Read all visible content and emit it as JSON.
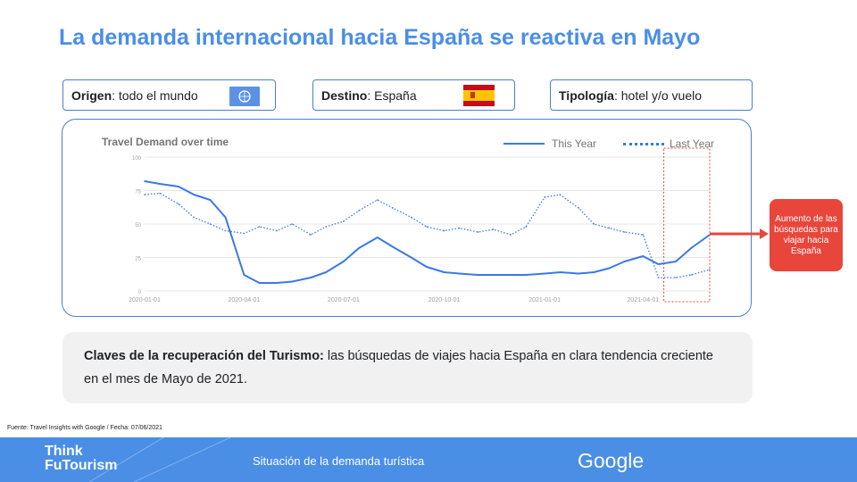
{
  "title": "La demanda internacional hacia España se reactiva en Mayo",
  "filters": {
    "origen_label": "Origen",
    "origen_value": ": todo el mundo",
    "destino_label": "Destino",
    "destino_value": ": España",
    "tipologia_label": "Tipología",
    "tipologia_value": ": hotel y/o vuelo"
  },
  "chart_data": {
    "type": "line",
    "title": "Travel Demand over time",
    "xlabel": "",
    "ylabel": "",
    "x": [
      "2020-01-01",
      "2020-01-15",
      "2020-02-01",
      "2020-02-15",
      "2020-03-01",
      "2020-03-15",
      "2020-04-01",
      "2020-04-15",
      "2020-05-01",
      "2020-05-15",
      "2020-06-01",
      "2020-06-15",
      "2020-07-01",
      "2020-07-15",
      "2020-08-01",
      "2020-08-15",
      "2020-09-01",
      "2020-09-15",
      "2020-10-01",
      "2020-10-15",
      "2020-11-01",
      "2020-11-15",
      "2020-12-01",
      "2020-12-15",
      "2021-01-01",
      "2021-01-15",
      "2021-02-01",
      "2021-02-15",
      "2021-03-01",
      "2021-03-15",
      "2021-04-01",
      "2021-04-15",
      "2021-05-01",
      "2021-05-15",
      "2021-06-01"
    ],
    "x_ticks": [
      "2020-01-01",
      "2020-04-01",
      "2020-07-01",
      "2020-10-01",
      "2021-01-01",
      "2021-04-01"
    ],
    "y_ticks": [
      0,
      25,
      50,
      75,
      100
    ],
    "ylim": [
      0,
      100
    ],
    "grid": true,
    "legend_position": "top-right",
    "series": [
      {
        "name": "This Year",
        "style": "solid",
        "values": [
          82,
          80,
          78,
          72,
          68,
          55,
          12,
          6,
          6,
          7,
          10,
          14,
          22,
          32,
          40,
          33,
          25,
          18,
          14,
          13,
          12,
          12,
          12,
          12,
          13,
          14,
          13,
          14,
          17,
          22,
          26,
          20,
          22,
          32,
          42
        ]
      },
      {
        "name": "Last Year",
        "style": "dotted",
        "values": [
          72,
          73,
          65,
          55,
          50,
          45,
          43,
          48,
          45,
          50,
          42,
          48,
          52,
          60,
          68,
          62,
          55,
          48,
          45,
          47,
          44,
          46,
          42,
          48,
          70,
          72,
          62,
          50,
          47,
          44,
          42,
          10,
          10,
          12,
          16
        ]
      }
    ],
    "highlight_region": {
      "x_from": "2021-04-20",
      "x_to": "2021-06-01"
    }
  },
  "callout": "Aumento de las búsquedas para viajar hacia España",
  "key": {
    "bold": "Claves de la recuperación del Turismo:",
    "text": " las búsquedas de viajes hacia España en clara tendencia creciente en el mes de Mayo de 2021."
  },
  "source": "Fuente: Travel Insights with Google / Fecha: 07/06/2021",
  "footer": {
    "brand_line1": "Think",
    "brand_line2": "FuTourism",
    "subtitle": "Situación de la demanda turística",
    "google": "Google"
  },
  "colors": {
    "accent": "#4a8ee6",
    "series": "#3b78e7",
    "callout": "#e8463b",
    "highlight": "#e8463b"
  }
}
